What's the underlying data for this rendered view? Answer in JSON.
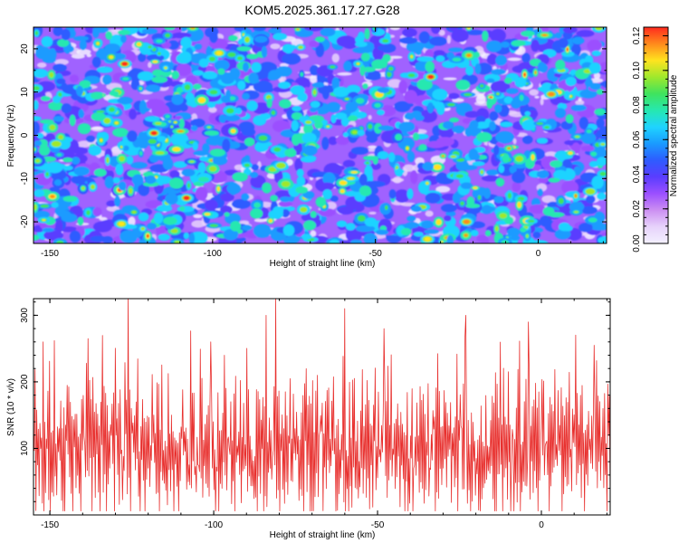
{
  "title": "KOM5.2025.361.17.27.G28",
  "colors": {
    "background": "#ffffff",
    "axis": "#000000",
    "snr_line": "#e8302e",
    "colormap": [
      "#f3f0ff",
      "#e7d3fb",
      "#cc8ff2",
      "#9b4fff",
      "#5a3dff",
      "#2e5cff",
      "#1a9bff",
      "#1fd3ff",
      "#26e8b0",
      "#3fe35e",
      "#9fe82c",
      "#ffe31f",
      "#ff8a1c",
      "#ff2a1e"
    ]
  },
  "spectrogram": {
    "chart_data": {
      "type": "heatmap",
      "xlabel": "Height of straight line (km)",
      "ylabel": "Frequency (Hz)",
      "xlim": [
        -155,
        21
      ],
      "ylim": [
        -25,
        25
      ],
      "xticks": [
        -150,
        -100,
        -50,
        0
      ],
      "xtick_labels": [
        "-150",
        "-100",
        "-50",
        "0"
      ],
      "yticks": [
        20,
        10,
        0,
        -10,
        -20
      ],
      "ytick_labels": [
        "20",
        "10",
        "0",
        "-10",
        "-20"
      ],
      "colorbar": {
        "label": "Normalized spectral amplitude",
        "range": [
          0,
          0.125
        ],
        "ticks": [
          0,
          0.02,
          0.04,
          0.06,
          0.08,
          0.1,
          0.12
        ],
        "tick_labels": [
          "0.00",
          "0.02",
          "0.04",
          "0.06",
          "0.08",
          "0.10",
          "0.12"
        ]
      },
      "description_of_values": "noise-like field of blobs mostly 0.02-0.06, scattered peaks near 0.10-0.12",
      "peaks": [
        {
          "x": -127,
          "y": 16.5,
          "value": 0.12
        },
        {
          "x": -118,
          "y": 0.5,
          "value": 0.12
        },
        {
          "x": -148,
          "y": -2,
          "value": 0.09
        },
        {
          "x": -98,
          "y": 19,
          "value": 0.1
        },
        {
          "x": -108,
          "y": -14.5,
          "value": 0.12
        },
        {
          "x": -128,
          "y": -20.5,
          "value": 0.1
        },
        {
          "x": -33,
          "y": 13.5,
          "value": 0.12
        },
        {
          "x": -22,
          "y": -20,
          "value": 0.11
        },
        {
          "x": 16,
          "y": -13,
          "value": 0.09
        },
        {
          "x": -79,
          "y": -7,
          "value": 0.09
        },
        {
          "x": -34,
          "y": -24,
          "value": 0.1
        },
        {
          "x": 4,
          "y": 9.5,
          "value": 0.11
        }
      ]
    }
  },
  "snr": {
    "chart_data": {
      "type": "line",
      "xlabel": "Height of straight line (km)",
      "ylabel": "SNR (10 * v/v)",
      "xlim": [
        -155,
        21
      ],
      "ylim": [
        0,
        325
      ],
      "xticks": [
        -150,
        -100,
        -50,
        0
      ],
      "xtick_labels": [
        "-150",
        "-100",
        "-50",
        "0"
      ],
      "yticks": [
        100,
        200,
        300
      ],
      "ytick_labels": [
        "100",
        "200",
        "300"
      ],
      "description_of_values": "dense noisy trace, baseline ~100, range ~5-325, ~700 samples",
      "spikes": [
        {
          "x": -126,
          "y": 325
        },
        {
          "x": -81,
          "y": 325
        },
        {
          "x": -84,
          "y": 300
        },
        {
          "x": -60,
          "y": 310
        },
        {
          "x": -23,
          "y": 300
        },
        {
          "x": -4,
          "y": 290
        },
        {
          "x": -152,
          "y": 260
        },
        {
          "x": -48,
          "y": 280
        },
        {
          "x": 16,
          "y": 255
        },
        {
          "x": -101,
          "y": 260
        }
      ]
    }
  }
}
